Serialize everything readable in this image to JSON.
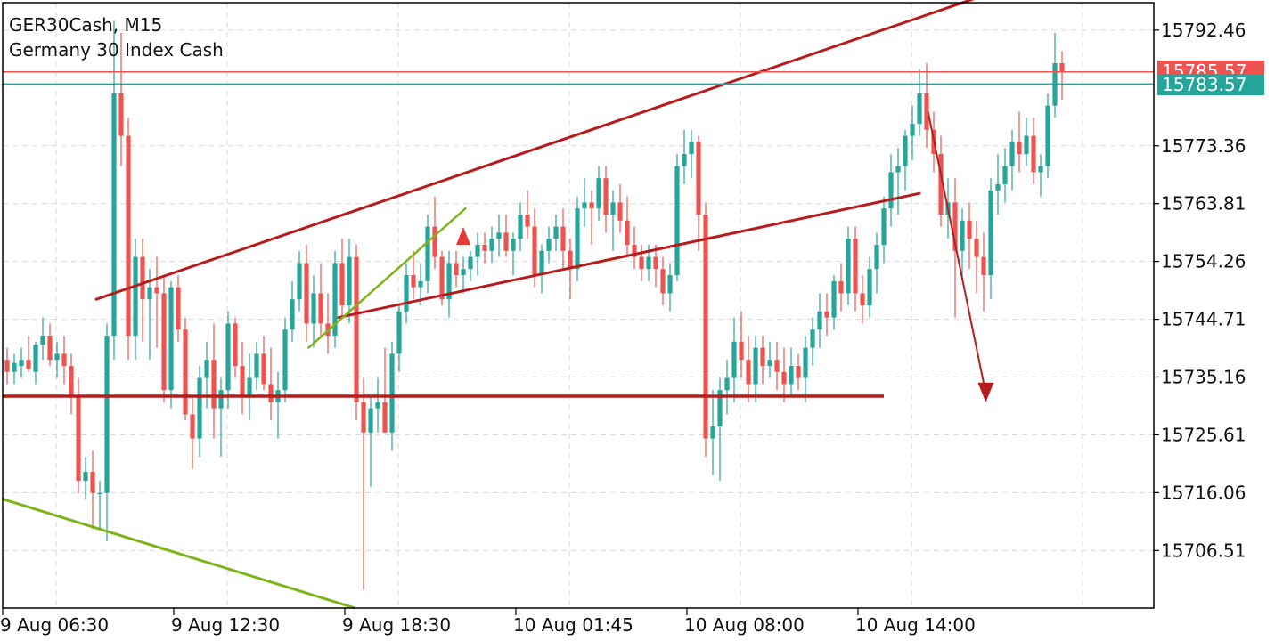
{
  "header": {
    "symbol_line": "GER30Cash, M15",
    "description": "Germany 30 Index Cash"
  },
  "colors": {
    "bull": "#26a69a",
    "bear": "#ef5350",
    "trendline": "#b71c1c",
    "green_line": "#7cb518",
    "ask_line": "#ef5350",
    "bid_line": "#26a69a",
    "grid": "#d9d9d9"
  },
  "price_tags": {
    "ask": {
      "label": "15785.57",
      "value": 15785.57,
      "color": "#ef5350"
    },
    "bid": {
      "label": "15783.57",
      "value": 15783.57,
      "color": "#26a69a"
    }
  },
  "chart_data": {
    "type": "candlestick",
    "symbol": "GER30Cash",
    "timeframe": "M15",
    "ylim": [
      15697.0,
      15797.0
    ],
    "y_ticks": [
      {
        "value": 15792.46,
        "label": "15792.46"
      },
      {
        "value": 15773.36,
        "label": "15773.36"
      },
      {
        "value": 15763.81,
        "label": "15763.81"
      },
      {
        "value": 15754.26,
        "label": "15754.26"
      },
      {
        "value": 15744.71,
        "label": "15744.71"
      },
      {
        "value": 15735.16,
        "label": "15735.16"
      },
      {
        "value": 15725.61,
        "label": "15725.61"
      },
      {
        "value": 15716.06,
        "label": "15716.06"
      },
      {
        "value": 15706.51,
        "label": "15706.51"
      }
    ],
    "x_ticks": [
      {
        "index": 0,
        "label": "9 Aug 06:30"
      },
      {
        "index": 24,
        "label": "9 Aug 12:30"
      },
      {
        "index": 48,
        "label": "9 Aug 18:30"
      },
      {
        "index": 72,
        "label": "10 Aug 01:45"
      },
      {
        "index": 96,
        "label": "10 Aug 08:00"
      },
      {
        "index": 120,
        "label": "10 Aug 14:00"
      }
    ],
    "candles": [
      [
        15738.0,
        15740.0,
        15734.0,
        15736.0
      ],
      [
        15736.0,
        15739.0,
        15734.0,
        15737.5
      ],
      [
        15737.0,
        15740.0,
        15735.0,
        15738.0
      ],
      [
        15738.0,
        15742.0,
        15736.0,
        15736.5
      ],
      [
        15736.0,
        15741.0,
        15734.0,
        15740.5
      ],
      [
        15740.5,
        15745.0,
        15738.0,
        15742.0
      ],
      [
        15742.0,
        15744.0,
        15737.0,
        15738.0
      ],
      [
        15738.0,
        15741.0,
        15735.0,
        15739.0
      ],
      [
        15739.0,
        15742.0,
        15734.0,
        15737.0
      ],
      [
        15737.0,
        15739.0,
        15729.0,
        15732.0
      ],
      [
        15732.0,
        15735.0,
        15716.0,
        15718.0
      ],
      [
        15718.0,
        15722.0,
        15715.0,
        15719.5
      ],
      [
        15719.5,
        15723.0,
        15710.0,
        15716.0
      ],
      [
        15716.0,
        15718.0,
        15710.0,
        15716.0
      ],
      [
        15716.0,
        15744.0,
        15708.0,
        15742.0
      ],
      [
        15742.0,
        15794.0,
        15738.0,
        15782.0
      ],
      [
        15782.0,
        15792.0,
        15770.0,
        15775.0
      ],
      [
        15775.0,
        15778.0,
        15738.0,
        15742.0
      ],
      [
        15742.0,
        15758.0,
        15738.0,
        15755.0
      ],
      [
        15755.0,
        15758.0,
        15741.0,
        15748.0
      ],
      [
        15748.0,
        15753.0,
        15738.0,
        15750.0
      ],
      [
        15750.0,
        15755.0,
        15740.0,
        15749.0
      ],
      [
        15749.0,
        15752.0,
        15731.0,
        15733.0
      ],
      [
        15733.0,
        15751.0,
        15730.0,
        15750.0
      ],
      [
        15750.0,
        15752.0,
        15741.0,
        15743.0
      ],
      [
        15743.0,
        15745.0,
        15728.0,
        15729.0
      ],
      [
        15729.0,
        15732.0,
        15720.0,
        15725.0
      ],
      [
        15725.0,
        15737.0,
        15722.0,
        15735.0
      ],
      [
        15735.0,
        15741.0,
        15730.0,
        15738.0
      ],
      [
        15738.0,
        15744.0,
        15725.0,
        15730.0
      ],
      [
        15730.0,
        15735.0,
        15722.0,
        15733.0
      ],
      [
        15733.0,
        15746.0,
        15730.0,
        15744.0
      ],
      [
        15744.0,
        15745.0,
        15735.0,
        15737.0
      ],
      [
        15737.0,
        15741.0,
        15729.0,
        15732.0
      ],
      [
        15732.0,
        15739.0,
        15728.0,
        15735.0
      ],
      [
        15735.0,
        15741.0,
        15733.0,
        15739.0
      ],
      [
        15739.0,
        15742.0,
        15733.0,
        15734.0
      ],
      [
        15734.0,
        15740.0,
        15728.0,
        15731.0
      ],
      [
        15731.0,
        15736.0,
        15725.0,
        15733.0
      ],
      [
        15733.0,
        15745.0,
        15731.0,
        15743.0
      ],
      [
        15743.0,
        15751.0,
        15741.0,
        15748.0
      ],
      [
        15748.0,
        15756.0,
        15746.0,
        15754.0
      ],
      [
        15754.0,
        15757.0,
        15741.0,
        15744.0
      ],
      [
        15744.0,
        15752.0,
        15740.0,
        15749.0
      ],
      [
        15749.0,
        15754.0,
        15742.0,
        15744.0
      ],
      [
        15744.0,
        15749.0,
        15739.0,
        15742.0
      ],
      [
        15742.0,
        15756.0,
        15740.0,
        15754.0
      ],
      [
        15754.0,
        15758.0,
        15745.0,
        15747.0
      ],
      [
        15747.0,
        15758.0,
        15744.0,
        15755.0
      ],
      [
        15755.0,
        15757.0,
        15728.0,
        15731.0
      ],
      [
        15731.0,
        15735.0,
        15700.0,
        15726.0
      ],
      [
        15726.0,
        15732.0,
        15717.0,
        15730.0
      ],
      [
        15730.0,
        15735.0,
        15726.0,
        15731.0
      ],
      [
        15731.0,
        15740.0,
        15726.0,
        15726.0
      ],
      [
        15726.0,
        15741.0,
        15723.0,
        15739.0
      ],
      [
        15739.0,
        15747.0,
        15736.0,
        15746.0
      ],
      [
        15746.0,
        15754.0,
        15744.0,
        15752.0
      ],
      [
        15752.0,
        15756.0,
        15748.0,
        15750.0
      ],
      [
        15750.0,
        15754.0,
        15747.0,
        15751.0
      ],
      [
        15751.0,
        15762.0,
        15749.0,
        15760.0
      ],
      [
        15760.0,
        15765.0,
        15753.0,
        15755.0
      ],
      [
        15755.0,
        15756.0,
        15747.0,
        15748.0
      ],
      [
        15748.0,
        15756.0,
        15745.0,
        15754.0
      ],
      [
        15754.0,
        15756.0,
        15750.0,
        15752.0
      ],
      [
        15752.0,
        15755.0,
        15749.0,
        15753.0
      ],
      [
        15753.0,
        15756.0,
        15751.0,
        15755.0
      ],
      [
        15755.0,
        15759.0,
        15752.0,
        15757.0
      ],
      [
        15757.0,
        15759.0,
        15754.0,
        15756.0
      ],
      [
        15756.0,
        15760.0,
        15754.0,
        15758.0
      ],
      [
        15758.0,
        15762.0,
        15755.0,
        15759.0
      ],
      [
        15759.0,
        15762.0,
        15755.0,
        15756.0
      ],
      [
        15756.0,
        15759.0,
        15752.0,
        15758.0
      ],
      [
        15758.0,
        15764.0,
        15756.0,
        15762.0
      ],
      [
        15762.0,
        15766.0,
        15758.0,
        15760.0
      ],
      [
        15760.0,
        15763.0,
        15750.0,
        15752.0
      ],
      [
        15752.0,
        15757.0,
        15749.0,
        15756.0
      ],
      [
        15756.0,
        15760.0,
        15754.0,
        15758.0
      ],
      [
        15758.0,
        15762.0,
        15756.0,
        15760.0
      ],
      [
        15760.0,
        15763.0,
        15753.0,
        15756.0
      ],
      [
        15756.0,
        15758.0,
        15748.0,
        15753.0
      ],
      [
        15753.0,
        15765.0,
        15751.0,
        15763.0
      ],
      [
        15763.0,
        15768.0,
        15760.0,
        15764.0
      ],
      [
        15764.0,
        15766.0,
        15757.0,
        15763.0
      ],
      [
        15763.0,
        15770.0,
        15761.0,
        15768.0
      ],
      [
        15768.0,
        15770.0,
        15759.0,
        15762.0
      ],
      [
        15762.0,
        15766.0,
        15756.0,
        15764.0
      ],
      [
        15764.0,
        15767.0,
        15759.0,
        15761.0
      ],
      [
        15761.0,
        15765.0,
        15755.0,
        15757.0
      ],
      [
        15757.0,
        15760.0,
        15753.0,
        15755.0
      ],
      [
        15755.0,
        15757.0,
        15751.0,
        15753.0
      ],
      [
        15753.0,
        15757.0,
        15751.0,
        15755.0
      ],
      [
        15755.0,
        15757.0,
        15750.0,
        15753.0
      ],
      [
        15753.0,
        15755.0,
        15747.0,
        15749.0
      ],
      [
        15749.0,
        15754.0,
        15746.0,
        15752.0
      ],
      [
        15752.0,
        15772.0,
        15751.0,
        15770.0
      ],
      [
        15770.0,
        15776.0,
        15767.0,
        15772.0
      ],
      [
        15772.0,
        15776.0,
        15768.0,
        15774.0
      ],
      [
        15774.0,
        15775.0,
        15756.0,
        15762.0
      ],
      [
        15762.0,
        15764.0,
        15722.0,
        15725.0
      ],
      [
        15725.0,
        15733.0,
        15719.0,
        15727.0
      ],
      [
        15727.0,
        15735.0,
        15718.0,
        15733.0
      ],
      [
        15733.0,
        15738.0,
        15729.0,
        15735.0
      ],
      [
        15735.0,
        15745.0,
        15731.0,
        15741.0
      ],
      [
        15741.0,
        15746.0,
        15735.0,
        15738.0
      ],
      [
        15738.0,
        15742.0,
        15731.0,
        15734.0
      ],
      [
        15734.0,
        15742.0,
        15731.0,
        15740.0
      ],
      [
        15740.0,
        15742.0,
        15734.0,
        15737.0
      ],
      [
        15737.0,
        15741.0,
        15735.0,
        15738.0
      ],
      [
        15738.0,
        15741.0,
        15733.0,
        15736.0
      ],
      [
        15736.0,
        15740.0,
        15731.0,
        15734.0
      ],
      [
        15734.0,
        15740.0,
        15732.0,
        15737.0
      ],
      [
        15737.0,
        15739.0,
        15733.0,
        15735.0
      ],
      [
        15735.0,
        15742.0,
        15731.0,
        15740.0
      ],
      [
        15740.0,
        15745.0,
        15737.0,
        15743.0
      ],
      [
        15743.0,
        15749.0,
        15740.0,
        15746.0
      ],
      [
        15746.0,
        15749.0,
        15742.0,
        15745.0
      ],
      [
        15745.0,
        15752.0,
        15743.0,
        15751.0
      ],
      [
        15751.0,
        15754.0,
        15746.0,
        15749.0
      ],
      [
        15749.0,
        15760.0,
        15747.0,
        15758.0
      ],
      [
        15758.0,
        15760.0,
        15746.0,
        15749.0
      ],
      [
        15749.0,
        15752.0,
        15744.0,
        15747.0
      ],
      [
        15747.0,
        15755.0,
        15745.0,
        15753.0
      ],
      [
        15753.0,
        15759.0,
        15749.0,
        15757.0
      ],
      [
        15757.0,
        15765.0,
        15754.0,
        15763.0
      ],
      [
        15763.0,
        15772.0,
        15760.0,
        15769.0
      ],
      [
        15769.0,
        15773.0,
        15762.0,
        15770.0
      ],
      [
        15770.0,
        15776.0,
        15766.0,
        15775.0
      ],
      [
        15775.0,
        15780.0,
        15771.0,
        15777.0
      ],
      [
        15777.0,
        15786.0,
        15775.0,
        15782.0
      ],
      [
        15782.0,
        15787.0,
        15773.0,
        15776.0
      ],
      [
        15776.0,
        15779.0,
        15769.0,
        15772.0
      ],
      [
        15772.0,
        15775.0,
        15760.0,
        15762.0
      ],
      [
        15762.0,
        15768.0,
        15758.0,
        15764.0
      ],
      [
        15764.0,
        15768.0,
        15745.0,
        15756.0
      ],
      [
        15756.0,
        15763.0,
        15751.0,
        15761.0
      ],
      [
        15761.0,
        15764.0,
        15753.0,
        15758.0
      ],
      [
        15758.0,
        15761.0,
        15749.0,
        15755.0
      ],
      [
        15755.0,
        15759.0,
        15746.0,
        15752.0
      ],
      [
        15752.0,
        15768.0,
        15748.0,
        15766.0
      ],
      [
        15766.0,
        15772.0,
        15762.0,
        15767.0
      ],
      [
        15767.0,
        15773.0,
        15764.0,
        15770.0
      ],
      [
        15770.0,
        15776.0,
        15766.0,
        15774.0
      ],
      [
        15774.0,
        15779.0,
        15769.0,
        15772.0
      ],
      [
        15772.0,
        15778.0,
        15770.0,
        15775.0
      ],
      [
        15775.0,
        15778.0,
        15767.0,
        15769.0
      ],
      [
        15769.0,
        15772.0,
        15765.0,
        15770.0
      ],
      [
        15770.0,
        15782.0,
        15768.0,
        15780.0
      ],
      [
        15780.0,
        15792.0,
        15778.0,
        15787.0
      ],
      [
        15787.0,
        15789.0,
        15781.0,
        15785.57
      ]
    ],
    "annotations": [
      {
        "kind": "trendline",
        "color": "#b71c1c",
        "width": 3,
        "from": [
          0.0,
          15747.0
        ],
        "to": [
          0.0,
          15795.0
        ]
      }
    ]
  }
}
